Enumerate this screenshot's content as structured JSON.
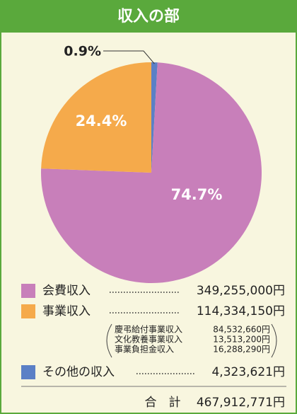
{
  "chart_data": {
    "type": "pie",
    "title": "収入の部",
    "categories": [
      "会費収入",
      "事業収入",
      "その他の収入"
    ],
    "values": [
      74.7,
      24.4,
      0.9
    ],
    "value_labels": [
      "74.7%",
      "24.4%",
      "0.9%"
    ],
    "colors": [
      "#c87fba",
      "#f5aa4b",
      "#5b80c6"
    ],
    "amounts": [
      "349,255,000円",
      "114,334,150円",
      "4,323,621円"
    ],
    "breakdown": [
      {
        "name": "慶弔給付事業収入",
        "amount": "84,532,660円"
      },
      {
        "name": "文化教養事業収入",
        "amount": "13,513,200円"
      },
      {
        "name": "事業負担金収入",
        "amount": "16,288,290円"
      }
    ],
    "total_label": "合　計",
    "total": "467,912,771円"
  }
}
